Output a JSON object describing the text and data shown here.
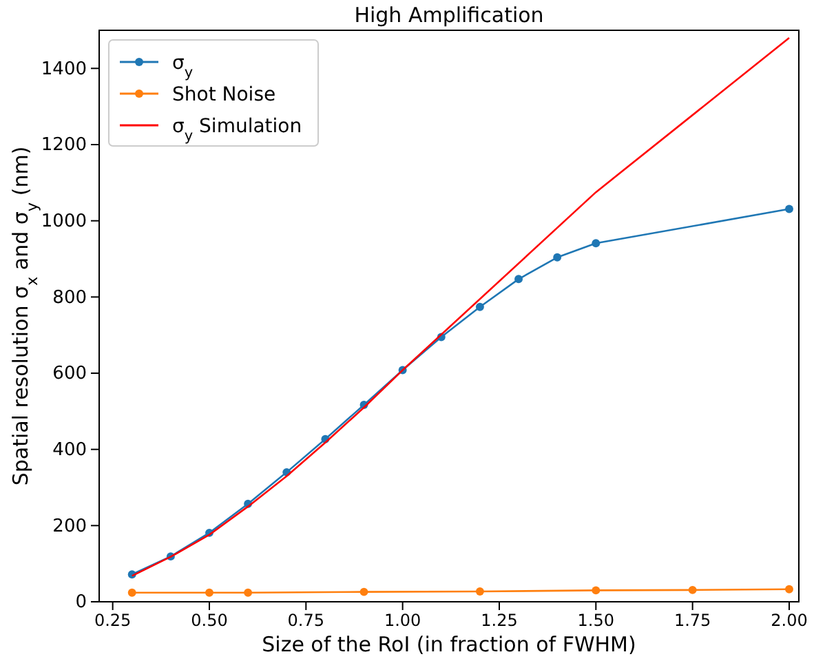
{
  "chart_data": {
    "type": "line",
    "title": "High Amplification",
    "xlabel": "Size of the RoI (in fraction of FWHM)",
    "ylabel": "Spatial resolution σ$_{x}$ and σ$_{y}$  (nm)",
    "xlim": [
      0.215,
      2.025
    ],
    "xticks": [
      {
        "value": 0.25,
        "label": "0.25"
      },
      {
        "value": 0.5,
        "label": "0.50"
      },
      {
        "value": 0.75,
        "label": "0.75"
      },
      {
        "value": 1,
        "label": "1.00"
      },
      {
        "value": 1.25,
        "label": "1.25"
      },
      {
        "value": 1.5,
        "label": "1.50"
      },
      {
        "value": 1.75,
        "label": "1.75"
      },
      {
        "value": 2,
        "label": "2.00"
      }
    ],
    "ylim": [
      0,
      1500
    ],
    "yticks": [
      0,
      200,
      400,
      600,
      800,
      1000,
      1200,
      1400
    ],
    "grid": false,
    "legend": "top left",
    "series": [
      {
        "name": "σ$_{y}$",
        "color": "#1f77b4",
        "marker": "circle",
        "x": [
          0.3,
          0.4,
          0.5,
          0.6,
          0.7,
          0.8,
          0.9,
          1.0,
          1.1,
          1.2,
          1.3,
          1.4,
          1.5,
          2.0
        ],
        "values": [
          72,
          119,
          181,
          257,
          340,
          427,
          517,
          608,
          695,
          774,
          847,
          904,
          941,
          1031
        ]
      },
      {
        "name": "Shot Noise",
        "color": "#ff7f0e",
        "marker": "circle",
        "x": [
          0.3,
          0.5,
          0.6,
          0.9,
          1.2,
          1.5,
          1.75,
          2.0
        ],
        "values": [
          24,
          24,
          24,
          26,
          27,
          30,
          31,
          33
        ]
      },
      {
        "name": "σ$_{y}$ Simulation",
        "color": "#ff0000",
        "marker": "none",
        "x": [
          0.3,
          0.4,
          0.5,
          0.6,
          0.7,
          0.8,
          0.9,
          1.0,
          1.5,
          2.0
        ],
        "values": [
          68,
          118,
          176,
          250,
          330,
          418,
          510,
          608,
          1075,
          1480
        ]
      }
    ]
  }
}
